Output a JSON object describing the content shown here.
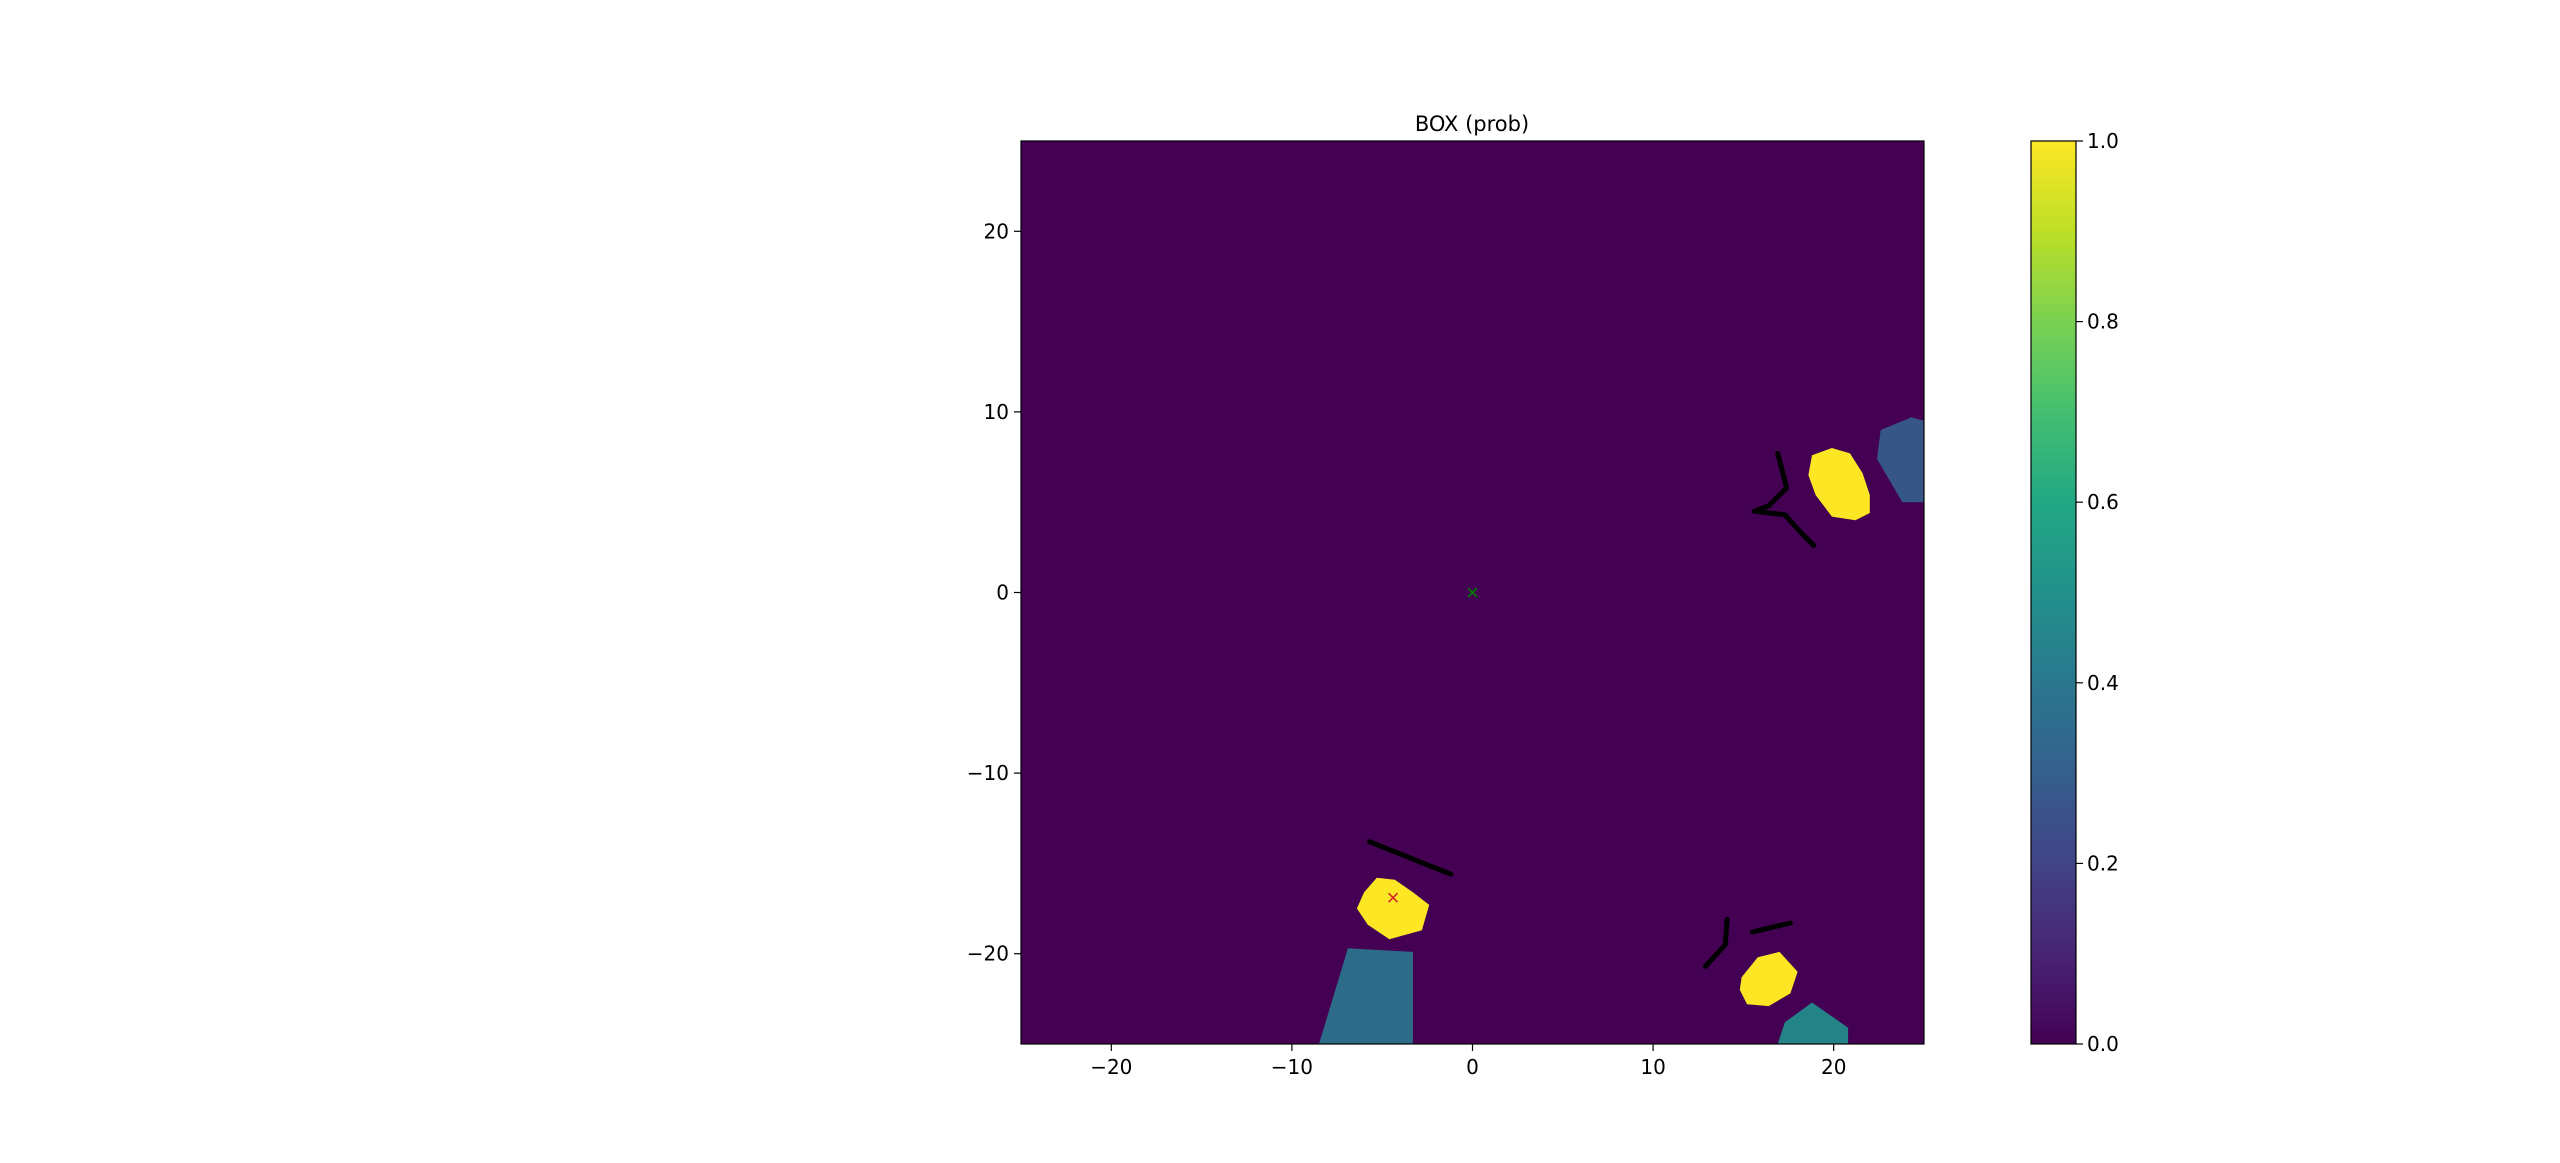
{
  "chart_data": {
    "type": "heatmap",
    "title": "BOX (prob)",
    "xlabel": "",
    "ylabel": "",
    "xlim": [
      -25,
      25
    ],
    "ylim": [
      -25,
      25
    ],
    "xticks": [
      -20,
      -10,
      0,
      10,
      20
    ],
    "yticks": [
      20,
      10,
      0,
      -10,
      -20
    ],
    "xtick_labels": [
      "−20",
      "−10",
      "0",
      "10",
      "20"
    ],
    "ytick_labels": [
      "20",
      "10",
      "0",
      "−10",
      "−20"
    ],
    "grid": false,
    "colormap": "viridis",
    "background_value": 0.0,
    "colorbar": {
      "range": [
        0.0,
        1.0
      ],
      "ticks": [
        1.0,
        0.8,
        0.6,
        0.4,
        0.2,
        0.0
      ],
      "tick_labels": [
        "1.0",
        "0.8",
        "0.6",
        "0.4",
        "0.2",
        "0.0"
      ]
    },
    "colors": {
      "high": "#fde725",
      "low": "#440154"
    },
    "high_probability_regions": [
      {
        "name": "upper-right blob",
        "value": 1.0,
        "outline": [
          [
            18.8,
            7.6
          ],
          [
            19.9,
            8.0
          ],
          [
            20.9,
            7.7
          ],
          [
            21.6,
            6.6
          ],
          [
            22.0,
            5.4
          ],
          [
            22.0,
            4.4
          ],
          [
            21.2,
            4.0
          ],
          [
            19.9,
            4.2
          ],
          [
            19.0,
            5.4
          ],
          [
            18.6,
            6.5
          ]
        ]
      },
      {
        "name": "lower-left blob",
        "value": 1.0,
        "outline": [
          [
            -6.0,
            -16.6
          ],
          [
            -5.3,
            -15.8
          ],
          [
            -4.3,
            -15.9
          ],
          [
            -3.3,
            -16.6
          ],
          [
            -2.4,
            -17.3
          ],
          [
            -2.8,
            -18.7
          ],
          [
            -4.6,
            -19.2
          ],
          [
            -5.8,
            -18.4
          ],
          [
            -6.4,
            -17.5
          ]
        ]
      },
      {
        "name": "lower-right blob",
        "value": 1.0,
        "outline": [
          [
            14.9,
            -21.3
          ],
          [
            15.8,
            -20.2
          ],
          [
            17.0,
            -19.9
          ],
          [
            18.0,
            -21.0
          ],
          [
            17.6,
            -22.2
          ],
          [
            16.4,
            -22.9
          ],
          [
            15.2,
            -22.8
          ],
          [
            14.8,
            -22.0
          ]
        ]
      }
    ],
    "medium_probability_regions": [
      {
        "name": "bottom-left wedge",
        "value": 0.4,
        "outline": [
          [
            -6.9,
            -19.7
          ],
          [
            -3.3,
            -19.9
          ],
          [
            -3.3,
            -25.0
          ],
          [
            -8.5,
            -25.0
          ]
        ]
      },
      {
        "name": "right-edge wedge",
        "value": 0.3,
        "outline": [
          [
            22.6,
            9.0
          ],
          [
            24.3,
            9.7
          ],
          [
            25.0,
            9.5
          ],
          [
            25.0,
            5.0
          ],
          [
            23.8,
            5.0
          ],
          [
            22.4,
            7.4
          ]
        ]
      },
      {
        "name": "bottom-right wedge",
        "value": 0.45,
        "outline": [
          [
            17.3,
            -23.8
          ],
          [
            18.8,
            -22.7
          ],
          [
            20.8,
            -24.1
          ],
          [
            20.8,
            -25.0
          ],
          [
            16.9,
            -25.0
          ]
        ]
      }
    ],
    "black_segments": [
      {
        "points": [
          [
            -5.7,
            -13.8
          ],
          [
            -1.2,
            -15.6
          ]
        ]
      },
      {
        "points": [
          [
            16.9,
            7.7
          ],
          [
            17.4,
            5.8
          ],
          [
            16.4,
            4.8
          ],
          [
            15.6,
            4.5
          ]
        ]
      },
      {
        "points": [
          [
            15.6,
            4.5
          ],
          [
            17.3,
            4.3
          ],
          [
            18.2,
            3.3
          ],
          [
            18.9,
            2.6
          ]
        ]
      },
      {
        "points": [
          [
            14.1,
            -18.1
          ],
          [
            14.0,
            -19.5
          ],
          [
            12.9,
            -20.7
          ]
        ]
      },
      {
        "points": [
          [
            15.5,
            -18.8
          ],
          [
            17.6,
            -18.3
          ]
        ]
      }
    ],
    "markers": [
      {
        "x": 0.0,
        "y": 0.0,
        "symbol": "x",
        "color": "#008000"
      },
      {
        "x": -4.4,
        "y": -16.9,
        "symbol": "x",
        "color": "#d62728"
      }
    ]
  }
}
